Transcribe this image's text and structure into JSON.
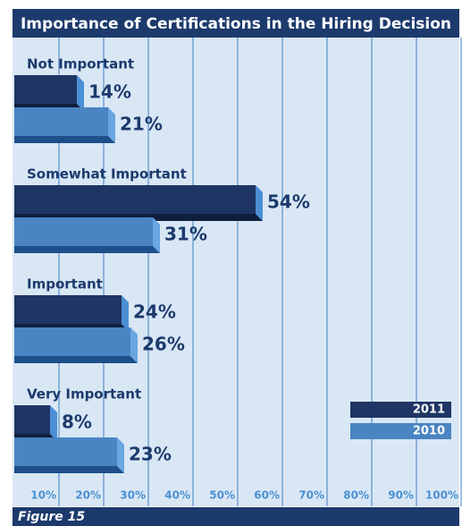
{
  "chart_data": {
    "type": "bar",
    "orientation": "horizontal",
    "title": "Importance of Certifications in the Hiring Decision",
    "caption": "Figure 15",
    "categories": [
      "Not Important",
      "Somewhat Important",
      "Important",
      "Very Important"
    ],
    "series": [
      {
        "name": "2011",
        "color": "#1f3564",
        "values": [
          14,
          54,
          24,
          8
        ],
        "value_labels": [
          "14%",
          "54%",
          "24%",
          "8%"
        ]
      },
      {
        "name": "2010",
        "color": "#4a84c2",
        "values": [
          21,
          31,
          26,
          23
        ],
        "value_labels": [
          "21%",
          "31%",
          "26%",
          "23%"
        ]
      }
    ],
    "xlim": [
      0,
      100
    ],
    "xticks": [
      {
        "value": 10,
        "label": "10%"
      },
      {
        "value": 20,
        "label": "20%"
      },
      {
        "value": 30,
        "label": "30%"
      },
      {
        "value": 40,
        "label": "40%"
      },
      {
        "value": 50,
        "label": "50%"
      },
      {
        "value": 60,
        "label": "60%"
      },
      {
        "value": 70,
        "label": "70%"
      },
      {
        "value": 80,
        "label": "80%"
      },
      {
        "value": 90,
        "label": "90%"
      },
      {
        "value": 100,
        "label": "100%"
      }
    ],
    "grid": true,
    "legend": "lower right"
  }
}
